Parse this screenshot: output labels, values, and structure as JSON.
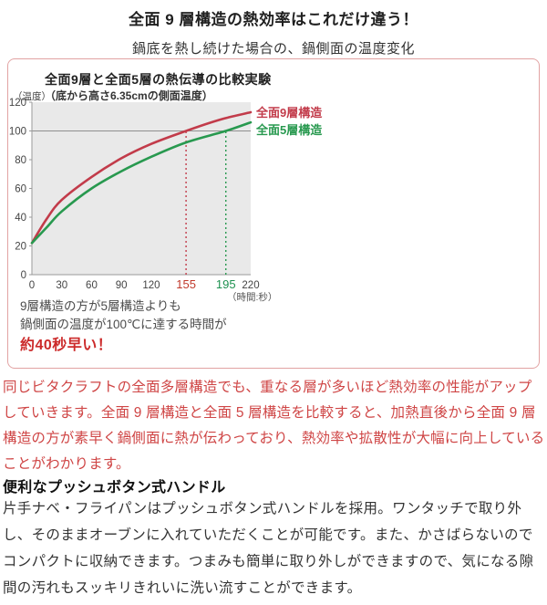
{
  "page": {
    "title": "全面 9 層構造の熱効率はこれだけ違う！",
    "subtitle": "鍋底を熱し続けた場合の、鍋側面の温度変化"
  },
  "chart_panel": {
    "title": "全面9層と全面5層の熱伝導の比較実験",
    "subtitle": "（底から高さ6.35cmの側面温度）",
    "y_unit": "（温度）",
    "x_unit": "（時間:秒）",
    "caption_line1": "9層構造の方が5層構造よりも",
    "caption_line2": "鍋側面の温度が100℃に達する時間が",
    "caption_highlight": "約40秒早い！"
  },
  "chart_data": {
    "type": "line",
    "title": "全面9層と全面5層の熱伝導の比較実験",
    "subtitle": "（底から高さ6.35cmの側面温度）",
    "xlabel": "（時間:秒）",
    "ylabel": "（温度）",
    "xlim": [
      0,
      220
    ],
    "ylim": [
      0,
      120
    ],
    "grid": false,
    "plot_bg": "#e9e9e9",
    "reference_line_y": 100,
    "y_ticks": [
      0,
      20,
      40,
      60,
      80,
      100,
      120
    ],
    "x_ticks": [
      {
        "value": 0,
        "color": "#444444",
        "emph": false
      },
      {
        "value": 30,
        "color": "#444444",
        "emph": false
      },
      {
        "value": 60,
        "color": "#444444",
        "emph": false
      },
      {
        "value": 90,
        "color": "#444444",
        "emph": false
      },
      {
        "value": 120,
        "color": "#444444",
        "emph": false
      },
      {
        "value": 155,
        "color": "#c0392b",
        "emph": true
      },
      {
        "value": 195,
        "color": "#1e9150",
        "emph": true
      },
      {
        "value": 220,
        "color": "#444444",
        "emph": false
      }
    ],
    "legend_position": "right-of-line-ends",
    "series": [
      {
        "name": "全面9層構造",
        "color": "#c23b4a",
        "marker_x": 155,
        "points": [
          [
            0,
            22
          ],
          [
            15,
            39
          ],
          [
            30,
            52
          ],
          [
            60,
            68
          ],
          [
            90,
            81
          ],
          [
            120,
            91
          ],
          [
            155,
            100
          ],
          [
            190,
            108
          ],
          [
            220,
            113
          ]
        ]
      },
      {
        "name": "全面5層構造",
        "color": "#28994f",
        "marker_x": 195,
        "points": [
          [
            0,
            22
          ],
          [
            15,
            33
          ],
          [
            30,
            44
          ],
          [
            60,
            60
          ],
          [
            90,
            72
          ],
          [
            120,
            82
          ],
          [
            155,
            92
          ],
          [
            195,
            100
          ],
          [
            220,
            106
          ]
        ]
      }
    ]
  },
  "description": {
    "text": "同じビタクラフトの全面多層構造でも、重なる層が多いほど熱効率の性能がアップしていきます。全面 9 層構造と全面 5 層構造を比較すると、加熱直後から全面 9 層構造の方が素早く鍋側面に熱が伝わっており、熱効率や拡散性が大幅に向上していることがわかります。",
    "text_color": "#cf4545"
  },
  "handle_section": {
    "heading": "便利なプッシュボタン式ハンドル",
    "body": "片手ナベ・フライパンはプッシュボタン式ハンドルを採用。ワンタッチで取り外し、そのままオーブンに入れていただくことが可能です。また、かさばらないのでコンパクトに収納できます。つまみも簡単に取り外しができますので、気になる隙間の汚れもスッキリきれいに洗い流すことができます。"
  },
  "colors": {
    "accent_red_text": "#cf4545",
    "accent_strong_red": "#cc2b2b",
    "panel_border": "#e2a3a3",
    "series_9layer": "#c23b4a",
    "series_5layer": "#28994f",
    "plot_background": "#e9e9e9",
    "axis_line": "#9a9a9a",
    "reference_line": "#909090"
  }
}
